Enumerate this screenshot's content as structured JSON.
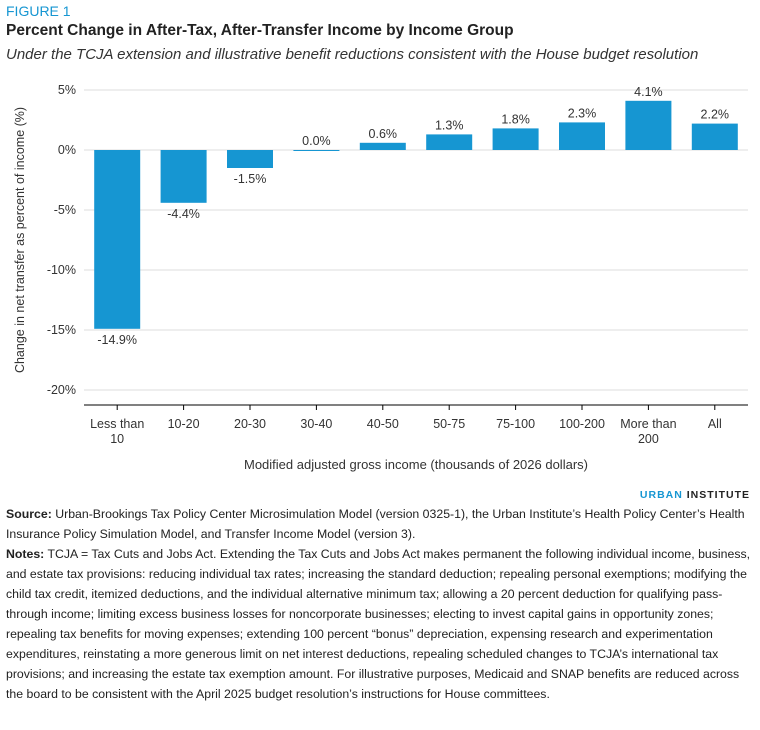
{
  "figure_label": "FIGURE 1",
  "title": "Percent Change in After-Tax, After-Transfer Income by Income Group",
  "subtitle": "Under the TCJA extension and illustrative benefit reductions consistent with the House budget resolution",
  "chart_data": {
    "type": "bar",
    "categories": [
      [
        "Less than",
        "10"
      ],
      [
        "10-20"
      ],
      [
        "20-30"
      ],
      [
        "30-40"
      ],
      [
        "40-50"
      ],
      [
        "50-75"
      ],
      [
        "75-100"
      ],
      [
        "100-200"
      ],
      [
        "More than",
        "200"
      ],
      [
        "All"
      ]
    ],
    "values": [
      -14.9,
      -4.4,
      -1.5,
      0.0,
      0.6,
      1.3,
      1.8,
      2.3,
      4.1,
      2.2
    ],
    "data_labels": [
      "-14.9%",
      "-4.4%",
      "-1.5%",
      "0.0%",
      "0.6%",
      "1.3%",
      "1.8%",
      "2.3%",
      "4.1%",
      "2.2%"
    ],
    "xlabel": "Modified adjusted gross income (thousands of 2026 dollars)",
    "ylabel": "Change in net transfer as percent of income (%)",
    "ylim": [
      -20,
      5
    ],
    "yticks": [
      5,
      0,
      -5,
      -10,
      -15,
      -20
    ],
    "ytick_labels": [
      "5%",
      "0%",
      "-5%",
      "-10%",
      "-15%",
      "-20%"
    ],
    "grid": true,
    "bar_color": "#1696d2"
  },
  "brand": {
    "part1": "URBAN",
    "part2": "INSTITUTE"
  },
  "source_label": "Source:",
  "source_text": "Urban-Brookings Tax Policy Center Microsimulation Model (version 0325-1), the Urban Institute’s Health Policy Center’s Health Insurance Policy Simulation Model, and Transfer Income Model (version 3).",
  "notes_label": "Notes:",
  "notes_text": "TCJA = Tax Cuts and Jobs Act. Extending the Tax Cuts and Jobs Act makes permanent the following individual income, business, and estate tax provisions: reducing individual tax rates; increasing the standard deduction; repealing personal exemptions; modifying the child tax credit, itemized deductions, and the individual alternative minimum tax; allowing a 20 percent deduction for qualifying pass-through income; limiting excess business losses for noncorporate businesses; electing to invest capital gains in opportunity zones; repealing tax benefits for moving expenses; extending 100 percent “bonus” depreciation, expensing research and experimentation expenditures, reinstating a more generous limit on net interest deductions, repealing scheduled changes to TCJA’s international tax provisions; and increasing the estate tax exemption amount. For illustrative purposes, Medicaid and SNAP benefits are reduced across the board to be consistent with the April 2025 budget resolution’s instructions for House committees."
}
